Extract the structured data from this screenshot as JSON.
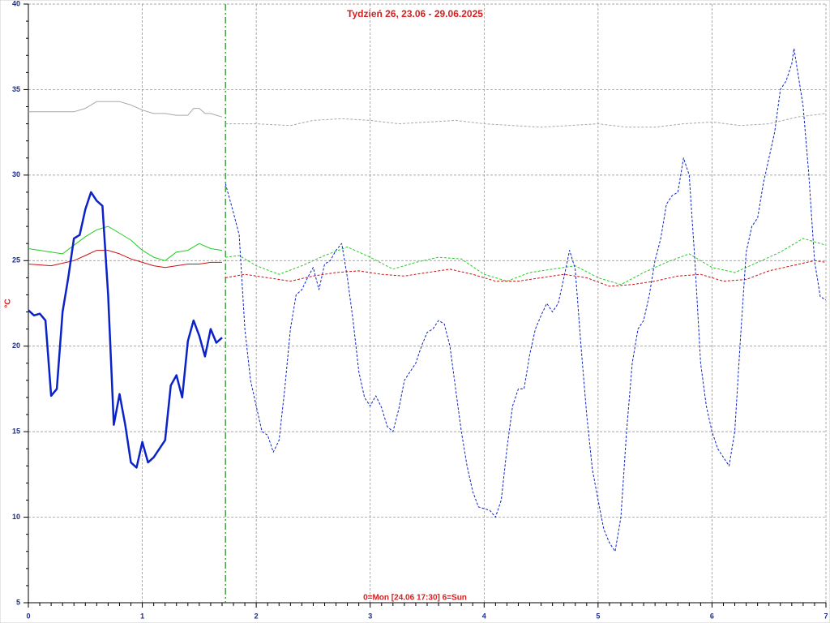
{
  "chart_data": {
    "type": "line",
    "title": "Tydzień 26, 23.06 - 29.06.2025",
    "xlabel": "0=Mon [24.06 17:30] 6=Sun",
    "ylabel": "°C",
    "xlim": [
      0,
      7
    ],
    "ylim": [
      5,
      40
    ],
    "xticks": [
      0,
      1,
      2,
      3,
      4,
      5,
      6,
      7
    ],
    "yticks": [
      5,
      10,
      15,
      20,
      25,
      30,
      35,
      40
    ],
    "grid": true,
    "marker_x": 1.73,
    "marker_color": "#1a8a1a",
    "series": [
      {
        "color": "#a8a8a8",
        "dash": "solid",
        "width": 1,
        "x": [
          0,
          0.2,
          0.4,
          0.5,
          0.6,
          0.7,
          0.8,
          0.9,
          1.0,
          1.1,
          1.2,
          1.3,
          1.4,
          1.45,
          1.5,
          1.55,
          1.6,
          1.7
        ],
        "values": [
          33.7,
          33.7,
          33.7,
          33.9,
          34.3,
          34.3,
          34.3,
          34.1,
          33.8,
          33.6,
          33.6,
          33.5,
          33.5,
          33.9,
          33.9,
          33.6,
          33.6,
          33.4
        ]
      },
      {
        "color": "#a8a8a8",
        "dash": "dashed",
        "width": 1,
        "x": [
          1.73,
          2.0,
          2.3,
          2.5,
          2.75,
          3.0,
          3.25,
          3.5,
          3.75,
          4.0,
          4.25,
          4.5,
          4.75,
          5.0,
          5.25,
          5.5,
          5.75,
          6.0,
          6.25,
          6.5,
          6.75,
          7.0
        ],
        "values": [
          33.0,
          33.0,
          32.9,
          33.2,
          33.3,
          33.2,
          33.0,
          33.1,
          33.2,
          33.0,
          32.9,
          32.8,
          32.9,
          33.0,
          32.8,
          32.8,
          33.0,
          33.1,
          32.9,
          33.0,
          33.4,
          33.6
        ]
      },
      {
        "color": "#22cc22",
        "dash": "solid",
        "width": 1,
        "x": [
          0,
          0.2,
          0.3,
          0.4,
          0.5,
          0.6,
          0.7,
          0.8,
          0.9,
          1.0,
          1.1,
          1.2,
          1.3,
          1.4,
          1.5,
          1.6,
          1.7
        ],
        "values": [
          25.7,
          25.5,
          25.4,
          25.9,
          26.4,
          26.8,
          27.0,
          26.6,
          26.2,
          25.6,
          25.2,
          25.0,
          25.5,
          25.6,
          26.0,
          25.7,
          25.6
        ]
      },
      {
        "color": "#22cc22",
        "dash": "dashed",
        "width": 1,
        "x": [
          1.73,
          1.85,
          2.0,
          2.2,
          2.4,
          2.6,
          2.8,
          3.0,
          3.2,
          3.4,
          3.6,
          3.8,
          4.0,
          4.2,
          4.4,
          4.6,
          4.8,
          5.0,
          5.2,
          5.4,
          5.6,
          5.8,
          6.0,
          6.2,
          6.4,
          6.6,
          6.8,
          7.0
        ],
        "values": [
          25.2,
          25.3,
          24.7,
          24.2,
          24.7,
          25.3,
          25.8,
          25.2,
          24.5,
          24.9,
          25.2,
          25.1,
          24.2,
          23.8,
          24.3,
          24.5,
          24.7,
          24.0,
          23.6,
          24.3,
          24.9,
          25.4,
          24.6,
          24.3,
          24.9,
          25.5,
          26.3,
          25.9
        ]
      },
      {
        "color": "#cc1111",
        "dash": "solid",
        "width": 1,
        "x": [
          0,
          0.2,
          0.4,
          0.5,
          0.6,
          0.7,
          0.8,
          0.9,
          1.0,
          1.1,
          1.2,
          1.4,
          1.5,
          1.6,
          1.7
        ],
        "values": [
          24.8,
          24.7,
          25.0,
          25.3,
          25.6,
          25.6,
          25.4,
          25.1,
          24.9,
          24.7,
          24.6,
          24.8,
          24.8,
          24.9,
          24.9
        ]
      },
      {
        "color": "#cc1111",
        "dash": "dashed",
        "width": 1,
        "x": [
          1.73,
          1.9,
          2.1,
          2.3,
          2.5,
          2.7,
          2.9,
          3.1,
          3.3,
          3.5,
          3.7,
          3.9,
          4.1,
          4.3,
          4.5,
          4.7,
          4.9,
          5.1,
          5.3,
          5.5,
          5.7,
          5.9,
          6.1,
          6.3,
          6.5,
          6.7,
          6.9,
          7.0
        ],
        "values": [
          24.0,
          24.2,
          24.0,
          23.8,
          24.1,
          24.3,
          24.4,
          24.2,
          24.1,
          24.3,
          24.5,
          24.2,
          23.8,
          23.8,
          24.0,
          24.2,
          24.0,
          23.5,
          23.6,
          23.8,
          24.1,
          24.2,
          23.8,
          23.9,
          24.4,
          24.7,
          25.0,
          24.9
        ]
      },
      {
        "color": "#0a22c8",
        "dash": "solid",
        "width": 2.5,
        "x": [
          0,
          0.05,
          0.1,
          0.15,
          0.2,
          0.25,
          0.3,
          0.35,
          0.4,
          0.45,
          0.5,
          0.55,
          0.6,
          0.65,
          0.7,
          0.75,
          0.8,
          0.85,
          0.9,
          0.95,
          1.0,
          1.05,
          1.1,
          1.15,
          1.2,
          1.25,
          1.3,
          1.35,
          1.4,
          1.45,
          1.5,
          1.55,
          1.6,
          1.65,
          1.7
        ],
        "values": [
          22.1,
          21.8,
          21.9,
          21.5,
          17.1,
          17.5,
          22.0,
          24.0,
          26.3,
          26.5,
          28.0,
          29.0,
          28.5,
          28.2,
          23.0,
          15.4,
          17.2,
          15.4,
          13.2,
          12.9,
          14.4,
          13.2,
          13.5,
          14.0,
          14.5,
          17.7,
          18.3,
          17.0,
          20.3,
          21.5,
          20.6,
          19.4,
          21.0,
          20.2,
          20.5
        ]
      },
      {
        "color": "#0a22c8",
        "dash": "dashed",
        "width": 1,
        "x": [
          1.73,
          1.75,
          1.8,
          1.85,
          1.9,
          1.95,
          2.0,
          2.05,
          2.1,
          2.15,
          2.2,
          2.25,
          2.3,
          2.35,
          2.4,
          2.45,
          2.5,
          2.55,
          2.6,
          2.65,
          2.7,
          2.75,
          2.8,
          2.85,
          2.9,
          2.95,
          3.0,
          3.05,
          3.1,
          3.15,
          3.2,
          3.25,
          3.3,
          3.35,
          3.4,
          3.45,
          3.5,
          3.55,
          3.6,
          3.65,
          3.7,
          3.75,
          3.8,
          3.85,
          3.9,
          3.95,
          4.0,
          4.05,
          4.1,
          4.15,
          4.2,
          4.25,
          4.3,
          4.35,
          4.4,
          4.45,
          4.5,
          4.55,
          4.6,
          4.65,
          4.7,
          4.75,
          4.8,
          4.85,
          4.9,
          4.95,
          5.0,
          5.05,
          5.1,
          5.15,
          5.2,
          5.25,
          5.3,
          5.35,
          5.4,
          5.45,
          5.5,
          5.55,
          5.6,
          5.65,
          5.7,
          5.75,
          5.8,
          5.85,
          5.9,
          5.95,
          6.0,
          6.05,
          6.1,
          6.15,
          6.2,
          6.25,
          6.3,
          6.35,
          6.4,
          6.45,
          6.5,
          6.55,
          6.6,
          6.65,
          6.7,
          6.72,
          6.8,
          6.85,
          6.9,
          6.95,
          7.0
        ],
        "values": [
          29.5,
          29.0,
          27.8,
          26.5,
          21.0,
          18.0,
          16.5,
          15.0,
          14.8,
          13.8,
          14.5,
          17.5,
          21.0,
          23.0,
          23.3,
          24.0,
          24.6,
          23.3,
          24.8,
          25.0,
          25.6,
          26.0,
          24.0,
          21.5,
          18.5,
          17.0,
          16.5,
          17.1,
          16.4,
          15.3,
          15.0,
          16.3,
          18.0,
          18.5,
          19.0,
          20.0,
          20.8,
          21.0,
          21.5,
          21.3,
          20.0,
          17.5,
          15.0,
          13.0,
          11.5,
          10.6,
          10.5,
          10.4,
          10.0,
          11.0,
          14.0,
          16.5,
          17.5,
          17.5,
          19.5,
          21.0,
          21.8,
          22.5,
          22.0,
          22.5,
          24.0,
          25.6,
          24.5,
          20.0,
          16.0,
          12.8,
          11.0,
          9.3,
          8.5,
          8.0,
          10.0,
          15.0,
          19.0,
          21.0,
          21.5,
          23.0,
          25.0,
          26.3,
          28.3,
          28.8,
          29.0,
          31.0,
          30.0,
          25.0,
          19.0,
          16.5,
          15.0,
          14.0,
          13.5,
          13.0,
          15.0,
          20.5,
          25.5,
          27.0,
          27.5,
          29.5,
          31.0,
          32.5,
          35.0,
          35.5,
          36.5,
          37.4,
          34.0,
          30.0,
          25.0,
          22.9,
          22.7
        ]
      }
    ]
  }
}
